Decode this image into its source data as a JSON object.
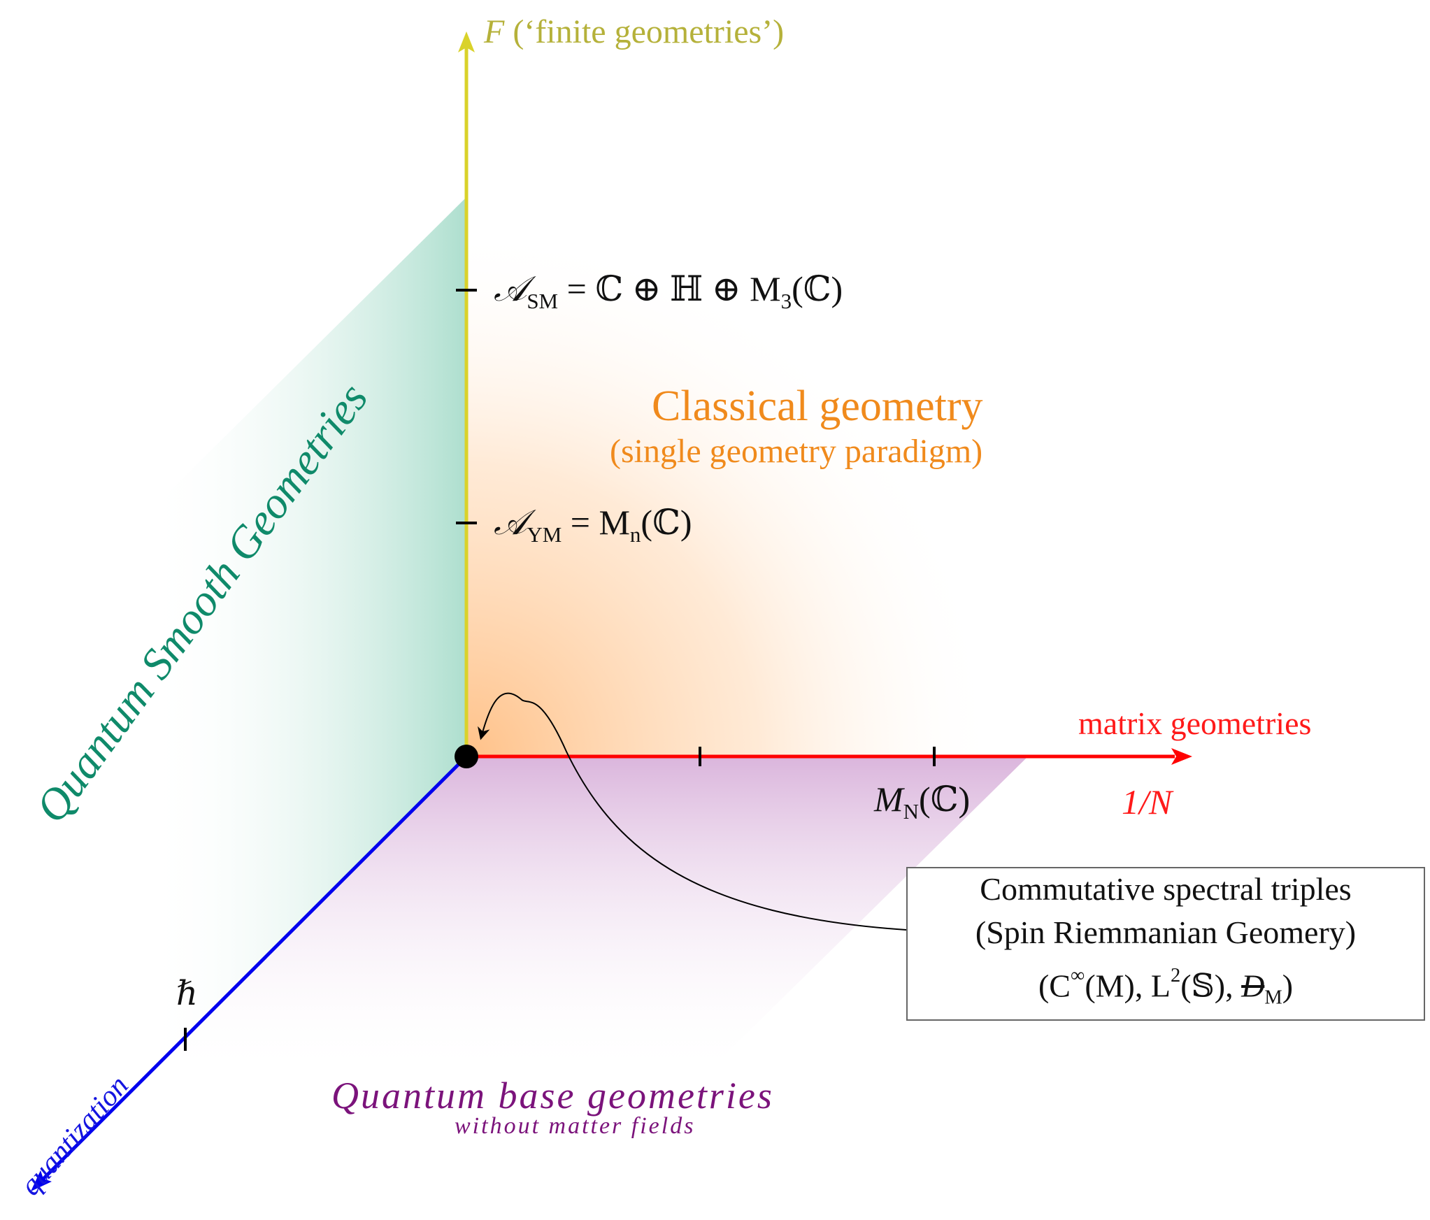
{
  "axes": {
    "vertical_symbol": "F",
    "vertical_label": "(‘finite geometries’)",
    "horizontal_top_label": "matrix geometries",
    "horizontal_bottom_label": "1/N",
    "diagonal_label": "quantization"
  },
  "ticks": {
    "sm_algebra": {
      "symbol": "𝒜",
      "sub": "SM",
      "rest": " = ℂ ⊕ ℍ ⊕ M",
      "sub2": "3",
      "tail": "(ℂ)"
    },
    "ym_algebra": {
      "symbol": "𝒜",
      "sub": "YM",
      "rest": " = M",
      "sub2": "n",
      "tail": "(ℂ)"
    },
    "matrix_algebra": {
      "symbol": "M",
      "sub": "N",
      "tail": "(ℂ)"
    },
    "hbar": "ℏ"
  },
  "regions": {
    "classical_title": "Classical geometry",
    "classical_subtitle": "(single geometry paradigm)",
    "smooth": "Quantum Smooth Geometries",
    "base_title": "Quantum base geometries",
    "base_subtitle": "without matter fields"
  },
  "callout": {
    "line1": "Commutative spectral triples",
    "line2": "(Spin Riemmanian Geomery)",
    "line3_open": "(C",
    "line3_sup_inf": "∞",
    "line3_mid": "(M), L",
    "line3_sup_2": "2",
    "line3_s": "(𝕊),  ",
    "line3_dirac": "D",
    "line3_sub": "M",
    "line3_close": ")"
  },
  "colors": {
    "vertical_axis": "#d9d22a",
    "horizontal_axis": "#ff0000",
    "diagonal_axis": "#0000ee",
    "classical": "#f08a1c",
    "smooth": "#0f8a6a",
    "base": "#7b137b"
  }
}
